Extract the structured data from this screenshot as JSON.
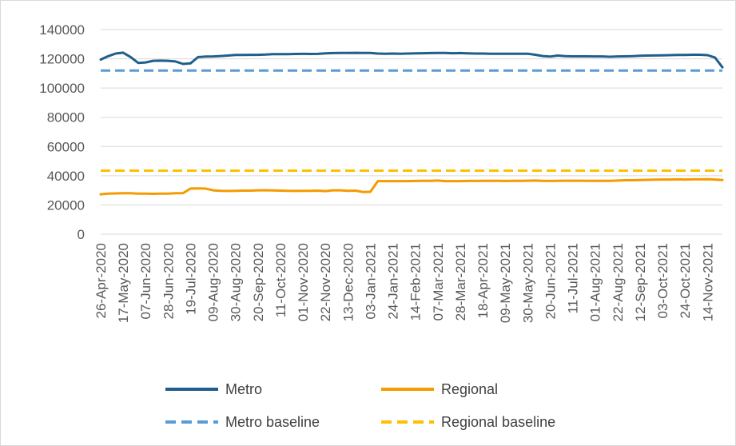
{
  "chart_data": {
    "type": "line",
    "x": [
      "26-Apr-2020",
      "03-May-2020",
      "10-May-2020",
      "17-May-2020",
      "24-May-2020",
      "31-May-2020",
      "07-Jun-2020",
      "14-Jun-2020",
      "21-Jun-2020",
      "28-Jun-2020",
      "05-Jul-2020",
      "12-Jul-2020",
      "19-Jul-2020",
      "26-Jul-2020",
      "02-Aug-2020",
      "09-Aug-2020",
      "16-Aug-2020",
      "23-Aug-2020",
      "30-Aug-2020",
      "06-Sep-2020",
      "13-Sep-2020",
      "20-Sep-2020",
      "27-Sep-2020",
      "04-Oct-2020",
      "11-Oct-2020",
      "18-Oct-2020",
      "25-Oct-2020",
      "01-Nov-2020",
      "08-Nov-2020",
      "15-Nov-2020",
      "22-Nov-2020",
      "29-Nov-2020",
      "06-Dec-2020",
      "13-Dec-2020",
      "20-Dec-2020",
      "27-Dec-2020",
      "03-Jan-2021",
      "10-Jan-2021",
      "17-Jan-2021",
      "24-Jan-2021",
      "31-Jan-2021",
      "07-Feb-2021",
      "14-Feb-2021",
      "21-Feb-2021",
      "28-Feb-2021",
      "07-Mar-2021",
      "14-Mar-2021",
      "21-Mar-2021",
      "28-Mar-2021",
      "04-Apr-2021",
      "11-Apr-2021",
      "18-Apr-2021",
      "25-Apr-2021",
      "02-May-2021",
      "09-May-2021",
      "16-May-2021",
      "23-May-2021",
      "30-May-2021",
      "06-Jun-2021",
      "13-Jun-2021",
      "20-Jun-2021",
      "27-Jun-2021",
      "04-Jul-2021",
      "11-Jul-2021",
      "18-Jul-2021",
      "25-Jul-2021",
      "01-Aug-2021",
      "08-Aug-2021",
      "15-Aug-2021",
      "22-Aug-2021",
      "29-Aug-2021",
      "05-Sep-2021",
      "12-Sep-2021",
      "19-Sep-2021",
      "26-Sep-2021",
      "03-Oct-2021",
      "10-Oct-2021",
      "17-Oct-2021",
      "24-Oct-2021",
      "31-Oct-2021",
      "07-Nov-2021",
      "14-Nov-2021",
      "21-Nov-2021",
      "28-Nov-2021"
    ],
    "x_tick_labels": [
      "26-Apr-2020",
      "17-May-2020",
      "07-Jun-2020",
      "28-Jun-2020",
      "19-Jul-2020",
      "09-Aug-2020",
      "30-Aug-2020",
      "20-Sep-2020",
      "11-Oct-2020",
      "01-Nov-2020",
      "22-Nov-2020",
      "13-Dec-2020",
      "03-Jan-2021",
      "24-Jan-2021",
      "14-Feb-2021",
      "07-Mar-2021",
      "28-Mar-2021",
      "18-Apr-2021",
      "09-May-2021",
      "30-May-2021",
      "20-Jun-2021",
      "11-Jul-2021",
      "01-Aug-2021",
      "22-Aug-2021",
      "12-Sep-2021",
      "03-Oct-2021",
      "24-Oct-2021",
      "14-Nov-2021"
    ],
    "y_ticks": [
      "0",
      "20000",
      "40000",
      "60000",
      "80000",
      "100000",
      "120000",
      "140000"
    ],
    "ylim": [
      0,
      140000
    ],
    "grid": "horizontal",
    "legend_position": "bottom",
    "series": [
      {
        "name": "Metro",
        "color": "#1f5f8b",
        "style": "solid",
        "values": [
          119500,
          121800,
          123600,
          124200,
          121200,
          117200,
          117500,
          118600,
          118700,
          118600,
          118200,
          116500,
          116900,
          121200,
          121500,
          121600,
          121900,
          122200,
          122600,
          122600,
          122700,
          122700,
          122900,
          123200,
          123200,
          123200,
          123300,
          123400,
          123300,
          123400,
          123700,
          123900,
          124000,
          124000,
          124100,
          124000,
          124000,
          123600,
          123500,
          123600,
          123500,
          123600,
          123700,
          123800,
          123900,
          124000,
          124000,
          123800,
          123900,
          123700,
          123600,
          123600,
          123500,
          123500,
          123500,
          123500,
          123500,
          123500,
          122800,
          121900,
          121500,
          122200,
          121800,
          121700,
          121700,
          121700,
          121600,
          121600,
          121400,
          121600,
          121700,
          121800,
          122100,
          122200,
          122300,
          122400,
          122500,
          122600,
          122600,
          122800,
          122800,
          122500,
          120900,
          114200
        ]
      },
      {
        "name": "Regional",
        "color": "#f59b00",
        "style": "solid",
        "values": [
          27300,
          27700,
          27900,
          28000,
          28000,
          27800,
          27700,
          27600,
          27700,
          27800,
          28000,
          28100,
          31200,
          31300,
          31200,
          30000,
          29700,
          29600,
          29700,
          29800,
          29800,
          30000,
          30100,
          29900,
          29800,
          29700,
          29600,
          29700,
          29700,
          29800,
          29500,
          30000,
          30000,
          29700,
          29800,
          28900,
          29000,
          36300,
          36300,
          36300,
          36300,
          36300,
          36400,
          36500,
          36500,
          36700,
          36300,
          36300,
          36300,
          36400,
          36400,
          36500,
          36500,
          36500,
          36400,
          36500,
          36500,
          36600,
          36700,
          36500,
          36400,
          36500,
          36600,
          36600,
          36600,
          36500,
          36500,
          36500,
          36500,
          36700,
          36900,
          36900,
          37100,
          37200,
          37300,
          37400,
          37400,
          37500,
          37400,
          37500,
          37500,
          37600,
          37400,
          37000
        ]
      },
      {
        "name": "Metro baseline",
        "color": "#5b9bd5",
        "style": "dashed",
        "values": [
          112000,
          112000,
          112000,
          112000,
          112000,
          112000,
          112000,
          112000,
          112000,
          112000,
          112000,
          112000,
          112000,
          112000,
          112000,
          112000,
          112000,
          112000,
          112000,
          112000,
          112000,
          112000,
          112000,
          112000,
          112000,
          112000,
          112000,
          112000,
          112000,
          112000,
          112000,
          112000,
          112000,
          112000,
          112000,
          112000,
          112000,
          112000,
          112000,
          112000,
          112000,
          112000,
          112000,
          112000,
          112000,
          112000,
          112000,
          112000,
          112000,
          112000,
          112000,
          112000,
          112000,
          112000,
          112000,
          112000,
          112000,
          112000,
          112000,
          112000,
          112000,
          112000,
          112000,
          112000,
          112000,
          112000,
          112000,
          112000,
          112000,
          112000,
          112000,
          112000,
          112000,
          112000,
          112000,
          112000,
          112000,
          112000,
          112000,
          112000,
          112000,
          112000,
          112000,
          112000
        ]
      },
      {
        "name": "Regional baseline",
        "color": "#ffc000",
        "style": "dashed",
        "values": [
          43500,
          43500,
          43500,
          43500,
          43500,
          43500,
          43500,
          43500,
          43500,
          43500,
          43500,
          43500,
          43500,
          43500,
          43500,
          43500,
          43500,
          43500,
          43500,
          43500,
          43500,
          43500,
          43500,
          43500,
          43500,
          43500,
          43500,
          43500,
          43500,
          43500,
          43500,
          43500,
          43500,
          43500,
          43500,
          43500,
          43500,
          43500,
          43500,
          43500,
          43500,
          43500,
          43500,
          43500,
          43500,
          43500,
          43500,
          43500,
          43500,
          43500,
          43500,
          43500,
          43500,
          43500,
          43500,
          43500,
          43500,
          43500,
          43500,
          43500,
          43500,
          43500,
          43500,
          43500,
          43500,
          43500,
          43500,
          43500,
          43500,
          43500,
          43500,
          43500,
          43500,
          43500,
          43500,
          43500,
          43500,
          43500,
          43500,
          43500,
          43500,
          43500,
          43500,
          43500
        ]
      }
    ]
  }
}
